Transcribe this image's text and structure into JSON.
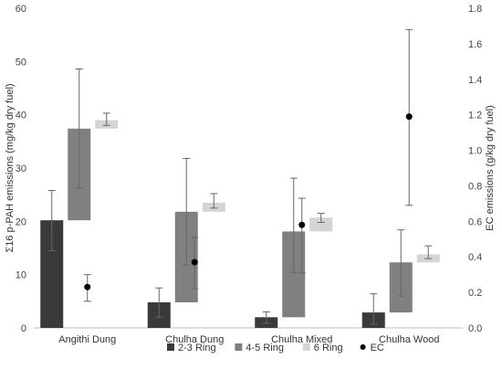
{
  "chart_data": {
    "type": "bar",
    "categories": [
      "Angithi Dung",
      "Chulha Dung",
      "Chulha Mixed",
      "Chulha Wood"
    ],
    "ylabel": "Σ16 p-PAH emissions (mg/kg dry fuel)",
    "y2label": "EC emissions (g/kg dry fuel)",
    "ylim": [
      0,
      60
    ],
    "y2lim": [
      0,
      1.8
    ],
    "yticks": [
      "0",
      "10",
      "20",
      "30",
      "40",
      "50",
      "60"
    ],
    "y2ticks": [
      "0.0",
      "0.2",
      "0.4",
      "0.6",
      "0.8",
      "1.0",
      "1.2",
      "1.4",
      "1.6",
      "1.8"
    ],
    "grid": false,
    "legend_position": "bottom",
    "series": [
      {
        "name": "2-3 Ring",
        "type": "stacked-bar",
        "color": "#3a3a3a",
        "base": [
          0,
          0,
          0,
          0
        ],
        "values": [
          20.2,
          4.8,
          2.0,
          2.9
        ],
        "err_low": [
          14.5,
          2.0,
          0.9,
          0.7
        ],
        "err_high": [
          25.8,
          7.5,
          3.0,
          6.4
        ]
      },
      {
        "name": "4-5 Ring",
        "type": "stacked-bar",
        "color": "#808080",
        "base": [
          20.2,
          4.8,
          2.0,
          2.9
        ],
        "values": [
          37.4,
          21.8,
          18.1,
          12.3
        ],
        "err_low": [
          26.2,
          11.8,
          10.4,
          6.0
        ],
        "err_high": [
          48.6,
          31.8,
          28.1,
          18.4
        ]
      },
      {
        "name": "6 Ring",
        "type": "stacked-bar",
        "color": "#d4d4d4",
        "base": [
          37.4,
          21.8,
          18.1,
          12.3
        ],
        "values": [
          39.0,
          23.5,
          20.7,
          13.8
        ],
        "err_low": [
          38.0,
          22.5,
          19.8,
          13.0
        ],
        "err_high": [
          40.3,
          25.2,
          21.5,
          15.4
        ]
      },
      {
        "name": "EC",
        "type": "points",
        "axis": "y2",
        "color": "#000000",
        "values": [
          0.23,
          0.37,
          0.58,
          1.19
        ],
        "err_low": [
          0.15,
          0.22,
          0.31,
          0.69
        ],
        "err_high": [
          0.3,
          0.51,
          0.73,
          1.68
        ]
      }
    ]
  }
}
